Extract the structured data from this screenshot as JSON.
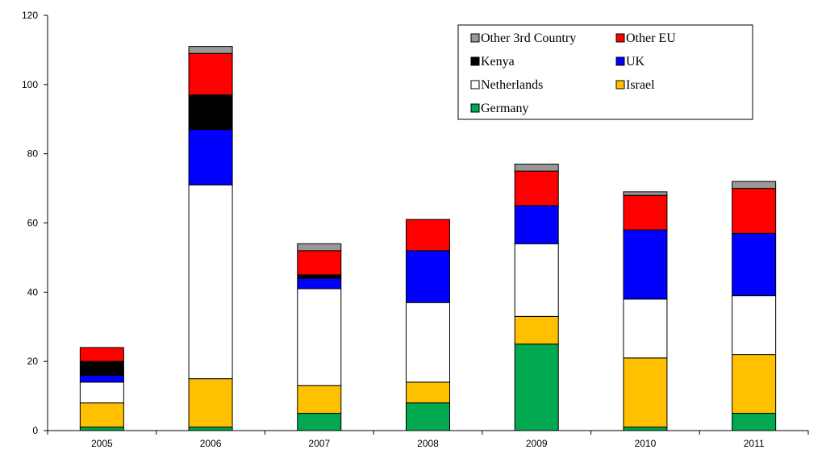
{
  "chart_data": {
    "type": "bar",
    "stacked": true,
    "title": "",
    "xlabel": "",
    "ylabel": "",
    "ylim": [
      0,
      120
    ],
    "yticks": [
      0,
      20,
      40,
      60,
      80,
      100,
      120
    ],
    "grid": false,
    "legend_position": "top-right",
    "categories": [
      "2005",
      "2006",
      "2007",
      "2008",
      "2009",
      "2010",
      "2011"
    ],
    "series": [
      {
        "name": "Germany",
        "color": "#00a850",
        "values": [
          1,
          1,
          5,
          8,
          25,
          1,
          5
        ]
      },
      {
        "name": "Israel",
        "color": "#ffc000",
        "values": [
          7,
          14,
          8,
          6,
          8,
          20,
          17
        ]
      },
      {
        "name": "Netherlands",
        "color": "#ffffff",
        "values": [
          6,
          56,
          28,
          23,
          21,
          17,
          17
        ]
      },
      {
        "name": "UK",
        "color": "#0000ff",
        "values": [
          2,
          16,
          3,
          15,
          11,
          20,
          18
        ]
      },
      {
        "name": "Kenya",
        "color": "#000000",
        "values": [
          4,
          10,
          1,
          0,
          0,
          0,
          0
        ]
      },
      {
        "name": "Other EU",
        "color": "#ff0000",
        "values": [
          4,
          12,
          7,
          9,
          10,
          10,
          13
        ]
      },
      {
        "name": "Other 3rd Country",
        "color": "#999999",
        "values": [
          0,
          2,
          2,
          0,
          2,
          1,
          2
        ]
      }
    ],
    "legend_order": [
      "Other 3rd Country",
      "Other EU",
      "Kenya",
      "UK",
      "Netherlands",
      "Israel",
      "Germany"
    ]
  }
}
